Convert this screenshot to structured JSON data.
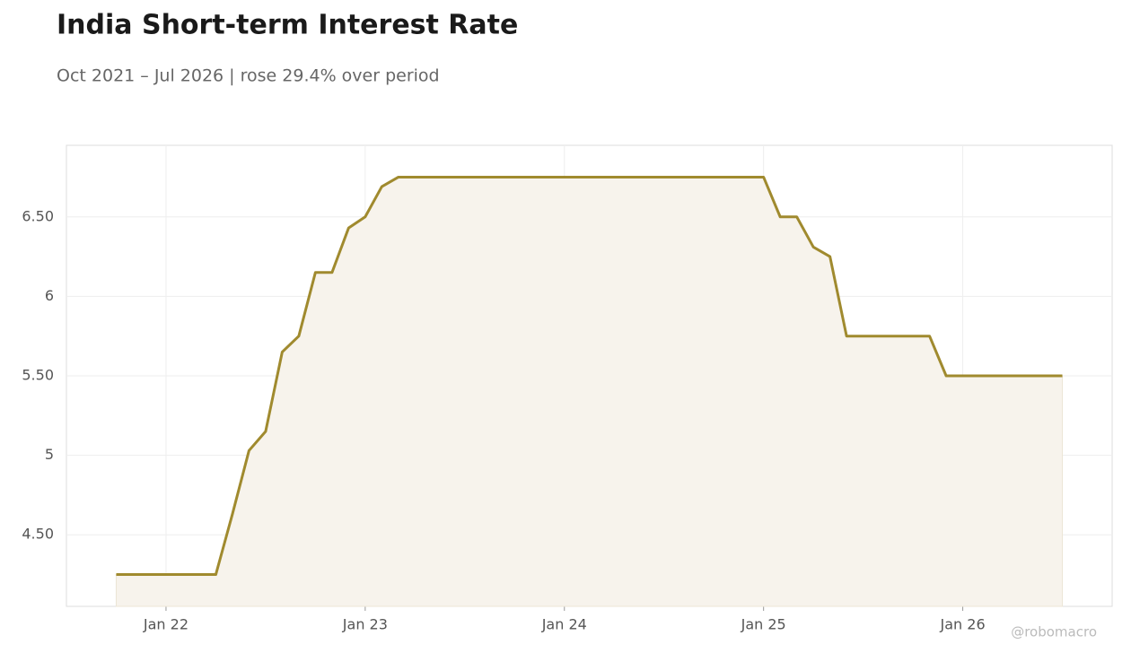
{
  "chart_data": {
    "type": "line",
    "title": "India Short-term Interest Rate",
    "subtitle": "Oct 2021 – Jul 2026 | rose 29.4% over period",
    "watermark": "@robomacro",
    "x": [
      "2021-10",
      "2021-11",
      "2021-12",
      "2022-01",
      "2022-02",
      "2022-03",
      "2022-04",
      "2022-05",
      "2022-06",
      "2022-07",
      "2022-08",
      "2022-09",
      "2022-10",
      "2022-11",
      "2022-12",
      "2023-01",
      "2023-02",
      "2023-03",
      "2023-04",
      "2023-05",
      "2023-06",
      "2023-07",
      "2023-08",
      "2023-09",
      "2023-10",
      "2023-11",
      "2023-12",
      "2024-01",
      "2024-02",
      "2024-03",
      "2024-04",
      "2024-05",
      "2024-06",
      "2024-07",
      "2024-08",
      "2024-09",
      "2024-10",
      "2024-11",
      "2024-12",
      "2025-01",
      "2025-02",
      "2025-03",
      "2025-04",
      "2025-05",
      "2025-06",
      "2025-07",
      "2025-08",
      "2025-09",
      "2025-10",
      "2025-11",
      "2025-12",
      "2026-01",
      "2026-02",
      "2026-03",
      "2026-04",
      "2026-05",
      "2026-06",
      "2026-07"
    ],
    "series": [
      {
        "name": "India Short-term Interest Rate",
        "color": "#a08a2e",
        "values": [
          4.25,
          4.25,
          4.25,
          4.25,
          4.25,
          4.25,
          4.25,
          4.63,
          5.03,
          5.15,
          5.65,
          5.75,
          6.15,
          6.15,
          6.43,
          6.5,
          6.69,
          6.75,
          6.75,
          6.75,
          6.75,
          6.75,
          6.75,
          6.75,
          6.75,
          6.75,
          6.75,
          6.75,
          6.75,
          6.75,
          6.75,
          6.75,
          6.75,
          6.75,
          6.75,
          6.75,
          6.75,
          6.75,
          6.75,
          6.75,
          6.5,
          6.5,
          6.31,
          6.25,
          5.75,
          5.75,
          5.75,
          5.75,
          5.75,
          5.75,
          5.5,
          5.5,
          5.5,
          5.5,
          5.5,
          5.5,
          5.5,
          5.5
        ]
      }
    ],
    "fill_color": "#f7f3ec",
    "xlim": [
      "2021-07",
      "2026-10"
    ],
    "xticks": [
      {
        "value": "2022-01",
        "label": "Jan 22"
      },
      {
        "value": "2023-01",
        "label": "Jan 23"
      },
      {
        "value": "2024-01",
        "label": "Jan 24"
      },
      {
        "value": "2025-01",
        "label": "Jan 25"
      },
      {
        "value": "2026-01",
        "label": "Jan 26"
      }
    ],
    "ylim": [
      4.05,
      6.95
    ],
    "yticks": [
      {
        "value": 4.5,
        "label": "4.50"
      },
      5,
      {
        "value": 5.5,
        "label": "5.50"
      },
      6,
      {
        "value": 6.5,
        "label": "6.50"
      }
    ],
    "grid": true
  }
}
